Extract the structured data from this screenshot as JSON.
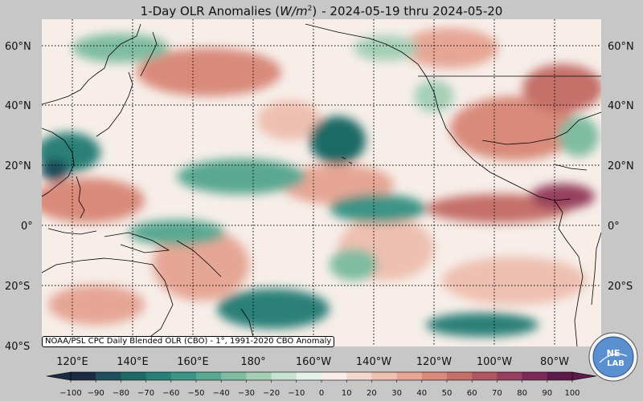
{
  "title": {
    "prefix": "1-Day OLR Anomalies",
    "unit_base": "W/m",
    "unit_exp": "2",
    "suffix": "- 2024-05-19 thru 2024-05-20"
  },
  "map": {
    "lat_labels": [
      "60°N",
      "40°N",
      "20°N",
      "0°",
      "20°S",
      "40°S"
    ],
    "lon_labels": [
      "120°E",
      "140°E",
      "160°E",
      "180°",
      "160°W",
      "140°W",
      "120°W",
      "100°W",
      "80°W"
    ],
    "grid": "dotted",
    "projection": "equirectangular"
  },
  "colorbar": {
    "ticks": [
      "−100",
      "−90",
      "−80",
      "−70",
      "−60",
      "−50",
      "−40",
      "−30",
      "−20",
      "−10",
      "0",
      "10",
      "20",
      "30",
      "40",
      "50",
      "60",
      "70",
      "80",
      "90",
      "100"
    ],
    "colors": [
      "#1b2a45",
      "#1f4e5c",
      "#1f6a66",
      "#2a8078",
      "#3d9485",
      "#5aa892",
      "#7fbca2",
      "#a5cfb7",
      "#c7e2d0",
      "#e6f1ea",
      "#f7eee9",
      "#f3d8cf",
      "#eec0b1",
      "#e6a695",
      "#d98a7a",
      "#c56f69",
      "#b05663",
      "#963f5e",
      "#7a2a58",
      "#5c1a4a"
    ],
    "extend": "both"
  },
  "credit": "NOAA/PSL CPC Daily Blended OLR (CBO) - 1°, 1991-2020 CBO Anomaly",
  "logo": {
    "text_top": "NE",
    "text_bottom": "LAB"
  },
  "colors": {
    "background": "#c7c7c7",
    "positive": "#d98a7a",
    "negative": "#2a8078",
    "neutral": "#f7eee9"
  }
}
